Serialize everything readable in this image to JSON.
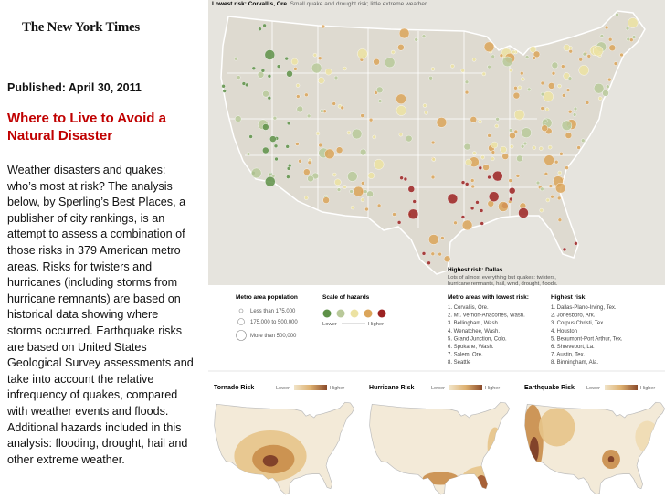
{
  "header": {
    "logo": "The New York Times",
    "published": "Published: April 30, 2011",
    "title": "Where to Live to Avoid a Natural Disaster",
    "body": "Weather disasters and quakes: who’s most at risk? The analysis below, by Sperling’s Best Places, a publisher of city rankings, is an attempt to assess a combination of those risks in 379 American metro areas. Risks for twisters and hurricanes (including storms from hurricane remnants) are based on historical data showing where storms occurred. Earthquake risks are based on United States Geological Survey assessments and take into account the relative infrequency of quakes, compared with weather events and floods. Additional hazards included in this analysis: flooding, drought, hail and other extreme weather."
  },
  "map": {
    "lowest_label": "Lowest risk: Corvallis, Ore.",
    "lowest_note": "Small quake and drought risk; little extreme weather.",
    "highest_label": "Highest risk: Dallas",
    "highest_note": [
      "Lots of almost everything but quakes: twisters,",
      "hurricane remnants, hail, wind, drought, floods."
    ]
  },
  "legend": {
    "population_title": "Metro area population",
    "population": [
      "Less than 175,000",
      "175,000 to 500,000",
      "More than 500,000"
    ],
    "hazard_title": "Scale of hazards",
    "lower": "Lower",
    "higher": "Higher"
  },
  "lowest_list": {
    "title": "Metro areas with lowest risk:",
    "items": [
      "1. Corvallis, Ore.",
      "2. Mt. Vernon-Anacortes, Wash.",
      "3. Bellingham, Wash.",
      "4. Wenatchee, Wash.",
      "5. Grand Junction, Colo.",
      "6. Spokane, Wash.",
      "7. Salem, Ore.",
      "8. Seattle"
    ]
  },
  "highest_list": {
    "title": "Highest risk:",
    "items": [
      "1. Dallas-Plano-Irving, Tex.",
      "2. Jonesboro, Ark.",
      "3. Corpus Christi, Tex.",
      "4. Houston",
      "5. Beaumont-Port Arthur, Tex.",
      "6. Shreveport, La.",
      "7. Austin, Tex.",
      "8. Birmingham, Ala."
    ]
  },
  "small_maps": [
    {
      "title": "Tornado Risk",
      "lower": "Lower",
      "higher": "Higher"
    },
    {
      "title": "Hurricane Risk",
      "lower": "Lower",
      "higher": "Higher"
    },
    {
      "title": "Earthquake Risk",
      "lower": "Lower",
      "higher": "Higher"
    }
  ]
}
